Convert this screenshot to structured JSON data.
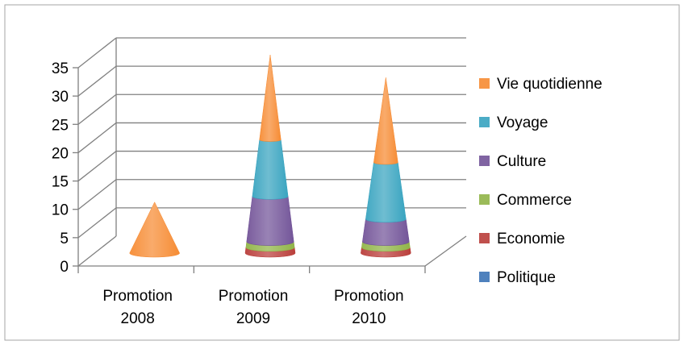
{
  "chart_data": {
    "type": "bar",
    "style": "3d-stacked-cone",
    "categories": [
      "Promotion 2008",
      "Promotion 2009",
      "Promotion 2010"
    ],
    "category_lines": [
      [
        "Promotion",
        "2008"
      ],
      [
        "Promotion",
        "2009"
      ],
      [
        "Promotion",
        "2010"
      ]
    ],
    "series": [
      {
        "name": "Politique",
        "color": "#4f81bd",
        "values": [
          0,
          0,
          0
        ]
      },
      {
        "name": "Economie",
        "color": "#c0504d",
        "values": [
          0,
          1,
          1
        ]
      },
      {
        "name": "Commerce",
        "color": "#9bbb59",
        "values": [
          0,
          1,
          1
        ]
      },
      {
        "name": "Culture",
        "color": "#8064a2",
        "values": [
          0,
          8,
          4
        ]
      },
      {
        "name": "Voyage",
        "color": "#4bacc6",
        "values": [
          0,
          10,
          10
        ]
      },
      {
        "name": "Vie quotidienne",
        "color": "#f79646",
        "values": [
          9,
          15,
          15
        ]
      }
    ],
    "y_ticks": [
      "0",
      "5",
      "10",
      "15",
      "20",
      "25",
      "30",
      "35"
    ],
    "ylim": [
      0,
      35
    ],
    "grid": true,
    "legend_position": "right",
    "title": "",
    "xlabel": "",
    "ylabel": ""
  }
}
